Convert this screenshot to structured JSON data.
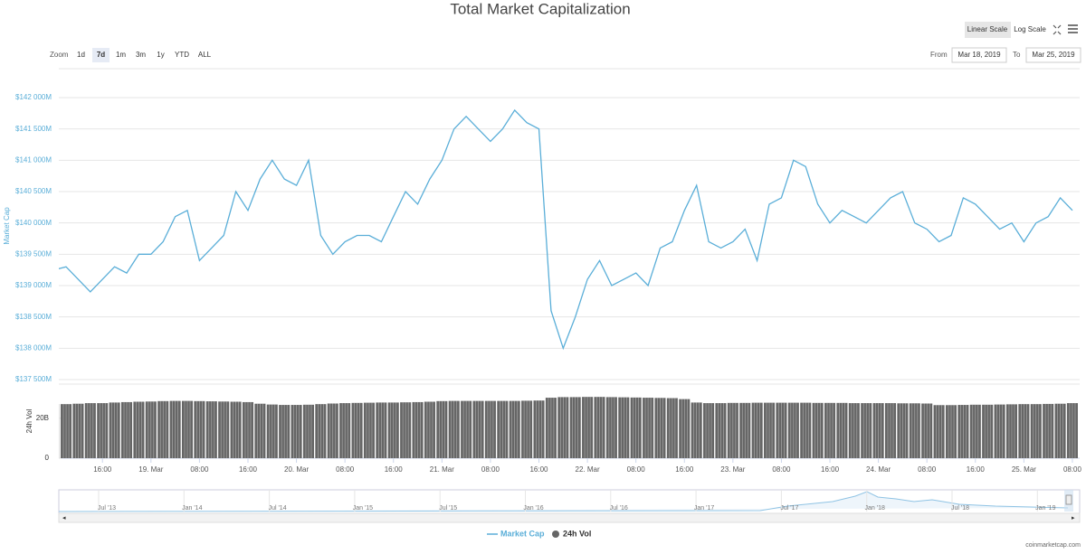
{
  "toolbar": {
    "zoom_label": "Zoom",
    "zoom_buttons": [
      "1d",
      "7d",
      "1m",
      "3m",
      "1y",
      "YTD",
      "ALL"
    ],
    "active_zoom": "7d",
    "scale_buttons": [
      "Linear Scale",
      "Log Scale"
    ],
    "from_label": "From",
    "from_date": "Mar 18, 2019",
    "to_label": "To",
    "to_date": "Mar 25, 2019"
  },
  "chart_data": [
    {
      "type": "line",
      "title": "Total Market Capitalization",
      "y_label": "Market Cap",
      "series": [
        {
          "name": "Market Cap",
          "color": "#5aaed8",
          "values": [
            139250,
            139300,
            139100,
            138900,
            139100,
            139300,
            139200,
            139500,
            139500,
            139700,
            140100,
            140200,
            139400,
            139600,
            139800,
            140500,
            140200,
            140700,
            141000,
            140700,
            140600,
            141000,
            139800,
            139500,
            139700,
            139800,
            139800,
            139700,
            140100,
            140500,
            140300,
            140700,
            141000,
            141500,
            141700,
            141500,
            141300,
            141500,
            141800,
            141600,
            141500,
            138600,
            138000,
            138500,
            139100,
            139400,
            139000,
            139100,
            139200,
            139000,
            139600,
            139700,
            140200,
            140600,
            139700,
            139600,
            139700,
            139900,
            139400,
            140300,
            140400,
            141000,
            140900,
            140300,
            140000,
            140200,
            140100,
            140000,
            140200,
            140400,
            140500,
            140000,
            139900,
            139700,
            139800,
            140400,
            140300,
            140100,
            139900,
            140000,
            139700,
            140000,
            140100,
            140400,
            140200
          ]
        }
      ],
      "ylim": [
        137500,
        142000
      ],
      "yticks": [
        {
          "value": 137500,
          "label": "$137 500M"
        },
        {
          "value": 138000,
          "label": "$138 000M"
        },
        {
          "value": 138500,
          "label": "$138 500M"
        },
        {
          "value": 139000,
          "label": "$139 000M"
        },
        {
          "value": 139500,
          "label": "$139 500M"
        },
        {
          "value": 140000,
          "label": "$140 000M"
        },
        {
          "value": 140500,
          "label": "$140 500M"
        },
        {
          "value": 141000,
          "label": "$141 000M"
        },
        {
          "value": 141500,
          "label": "$141 500M"
        },
        {
          "value": 142000,
          "label": "$142 000M"
        }
      ],
      "xlim": [
        0.4,
        84.6
      ],
      "xticks": [
        {
          "value": 4,
          "label": "16:00"
        },
        {
          "value": 8,
          "label": "19. Mar"
        },
        {
          "value": 12,
          "label": "08:00"
        },
        {
          "value": 16,
          "label": "16:00"
        },
        {
          "value": 20,
          "label": "20. Mar"
        },
        {
          "value": 24,
          "label": "08:00"
        },
        {
          "value": 28,
          "label": "16:00"
        },
        {
          "value": 32,
          "label": "21. Mar"
        },
        {
          "value": 36,
          "label": "08:00"
        },
        {
          "value": 40,
          "label": "16:00"
        },
        {
          "value": 44,
          "label": "22. Mar"
        },
        {
          "value": 48,
          "label": "08:00"
        },
        {
          "value": 52,
          "label": "16:00"
        },
        {
          "value": 56,
          "label": "23. Mar"
        },
        {
          "value": 60,
          "label": "08:00"
        },
        {
          "value": 64,
          "label": "16:00"
        },
        {
          "value": 68,
          "label": "24. Mar"
        },
        {
          "value": 72,
          "label": "08:00"
        },
        {
          "value": 76,
          "label": "16:00"
        },
        {
          "value": 80,
          "label": "25. Mar"
        },
        {
          "value": 84,
          "label": "08:00"
        }
      ],
      "grid": true
    },
    {
      "type": "bar",
      "y_label": "24h Vol",
      "series": [
        {
          "name": "24h Vol",
          "color": "#666666",
          "values": [
            27,
            27,
            27.2,
            27.5,
            27.5,
            27.8,
            28,
            28.2,
            28.3,
            28.5,
            28.6,
            28.6,
            28.5,
            28.4,
            28.3,
            28.2,
            28,
            27.2,
            26.8,
            26.6,
            26.6,
            26.7,
            27,
            27.3,
            27.5,
            27.6,
            27.7,
            27.8,
            27.8,
            27.9,
            28,
            28.2,
            28.5,
            28.6,
            28.6,
            28.6,
            28.6,
            28.6,
            28.6,
            28.7,
            28.8,
            30.2,
            30.5,
            30.5,
            30.6,
            30.6,
            30.5,
            30.4,
            30.3,
            30.2,
            30.1,
            30,
            29.5,
            27.8,
            27.5,
            27.5,
            27.6,
            27.6,
            27.7,
            27.7,
            27.7,
            27.7,
            27.7,
            27.6,
            27.6,
            27.6,
            27.5,
            27.5,
            27.5,
            27.5,
            27.4,
            27.4,
            27.3,
            26.5,
            26.5,
            26.6,
            26.7,
            26.7,
            26.8,
            26.9,
            27,
            27,
            27.1,
            27.2,
            27.5
          ]
        }
      ],
      "ylim": [
        0,
        37
      ],
      "yticks": [
        0,
        {
          "value": 20,
          "label": "20B"
        }
      ],
      "xlim": [
        0.4,
        84.6
      ]
    }
  ],
  "navigator": {
    "labels": [
      "Jul '13",
      "Jan '14",
      "Jul '14",
      "Jan '15",
      "Jul '15",
      "Jan '16",
      "Jul '16",
      "Jan '17",
      "Jul '17",
      "Jan '18",
      "Jul '18",
      "Jan '19"
    ]
  },
  "credit": "coinmarketcap.com"
}
